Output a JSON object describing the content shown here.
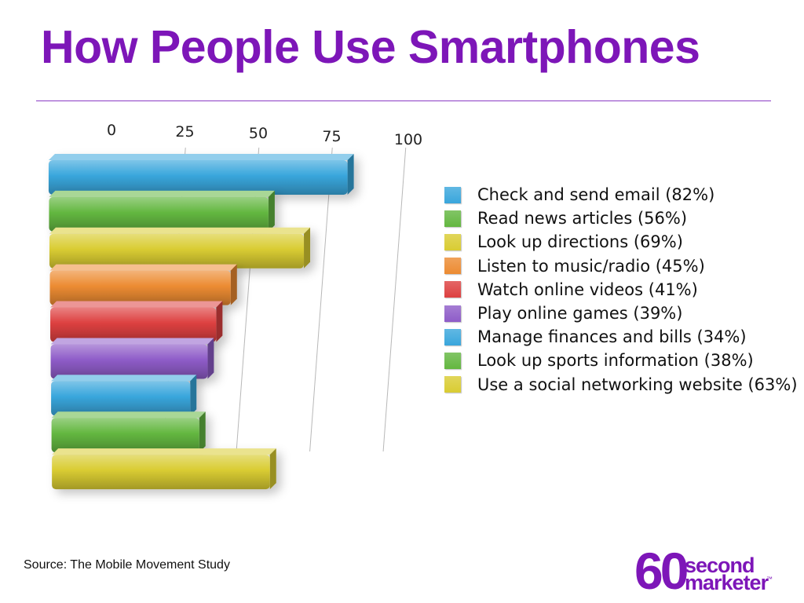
{
  "slide": {
    "title": "How People Use Smartphones",
    "source": "Source: The Mobile Movement Study"
  },
  "brand": {
    "number": "60",
    "word1": "second",
    "word2": "marketer",
    "mark": "™",
    "color": "#7d16b8"
  },
  "chart_data": {
    "type": "bar",
    "orientation": "horizontal",
    "style": "3d",
    "title": "How People Use Smartphones",
    "xlim": [
      0,
      100
    ],
    "ticks": [
      0,
      25,
      50,
      75,
      100
    ],
    "tick_labels": [
      "0",
      "25",
      "50",
      "75",
      "100"
    ],
    "grid": true,
    "legend_position": "right",
    "categories": [
      "Check and send email (82%)",
      "Read news articles (56%)",
      "Look up directions (69%)",
      "Listen to music/radio (45%)",
      "Watch online videos (41%)",
      "Play online games (39%)",
      "Manage finances and bills (34%)",
      "Look up sports information (38%)",
      "Use a social networking website (63%)"
    ],
    "values": [
      82,
      56,
      69,
      45,
      41,
      39,
      34,
      38,
      63
    ],
    "colors": [
      "#39a6dc",
      "#63b740",
      "#d9cc32",
      "#ec8b32",
      "#dd4040",
      "#8e5cc8",
      "#39a6dc",
      "#63b740",
      "#d9cc32"
    ]
  }
}
